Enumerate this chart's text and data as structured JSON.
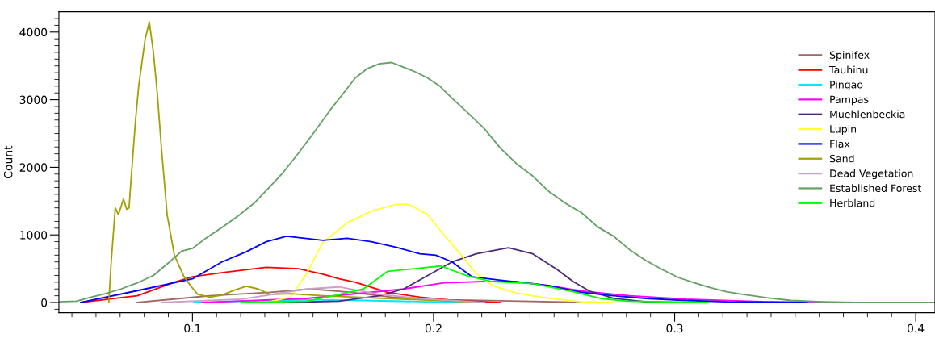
{
  "chart_data": {
    "type": "line",
    "ylabel": "Count",
    "xlim": [
      0.0446,
      0.408
    ],
    "ylim": [
      -150,
      4300
    ],
    "xticks": [
      {
        "value": 0.05,
        "label": null
      },
      {
        "value": 0.06,
        "label": null
      },
      {
        "value": 0.07,
        "label": null
      },
      {
        "value": 0.08,
        "label": null
      },
      {
        "value": 0.09,
        "label": null
      },
      {
        "value": 0.1,
        "label": "0.1"
      },
      {
        "value": 0.11,
        "label": null
      },
      {
        "value": 0.12,
        "label": null
      },
      {
        "value": 0.13,
        "label": null
      },
      {
        "value": 0.14,
        "label": null
      },
      {
        "value": 0.15,
        "label": null
      },
      {
        "value": 0.16,
        "label": null
      },
      {
        "value": 0.17,
        "label": null
      },
      {
        "value": 0.18,
        "label": null
      },
      {
        "value": 0.19,
        "label": null
      },
      {
        "value": 0.2,
        "label": "0.2"
      },
      {
        "value": 0.21,
        "label": null
      },
      {
        "value": 0.22,
        "label": null
      },
      {
        "value": 0.23,
        "label": null
      },
      {
        "value": 0.24,
        "label": null
      },
      {
        "value": 0.25,
        "label": null
      },
      {
        "value": 0.26,
        "label": null
      },
      {
        "value": 0.27,
        "label": null
      },
      {
        "value": 0.28,
        "label": null
      },
      {
        "value": 0.29,
        "label": null
      },
      {
        "value": 0.3,
        "label": "0.3"
      },
      {
        "value": 0.31,
        "label": null
      },
      {
        "value": 0.32,
        "label": null
      },
      {
        "value": 0.33,
        "label": null
      },
      {
        "value": 0.34,
        "label": null
      },
      {
        "value": 0.35,
        "label": null
      },
      {
        "value": 0.36,
        "label": null
      },
      {
        "value": 0.37,
        "label": null
      },
      {
        "value": 0.38,
        "label": null
      },
      {
        "value": 0.39,
        "label": null
      },
      {
        "value": 0.4,
        "label": "0.4"
      }
    ],
    "yticks": [
      {
        "value": -100,
        "label": null
      },
      {
        "value": 0,
        "label": "0"
      },
      {
        "value": 100,
        "label": null
      },
      {
        "value": 200,
        "label": null
      },
      {
        "value": 300,
        "label": null
      },
      {
        "value": 400,
        "label": null
      },
      {
        "value": 500,
        "label": null
      },
      {
        "value": 600,
        "label": null
      },
      {
        "value": 700,
        "label": null
      },
      {
        "value": 800,
        "label": null
      },
      {
        "value": 900,
        "label": null
      },
      {
        "value": 1000,
        "label": "1000"
      },
      {
        "value": 1100,
        "label": null
      },
      {
        "value": 1200,
        "label": null
      },
      {
        "value": 1300,
        "label": null
      },
      {
        "value": 1400,
        "label": null
      },
      {
        "value": 1500,
        "label": null
      },
      {
        "value": 1600,
        "label": null
      },
      {
        "value": 1700,
        "label": null
      },
      {
        "value": 1800,
        "label": null
      },
      {
        "value": 1900,
        "label": null
      },
      {
        "value": 2000,
        "label": "2000"
      },
      {
        "value": 2100,
        "label": null
      },
      {
        "value": 2200,
        "label": null
      },
      {
        "value": 2300,
        "label": null
      },
      {
        "value": 2400,
        "label": null
      },
      {
        "value": 2500,
        "label": null
      },
      {
        "value": 2600,
        "label": null
      },
      {
        "value": 2700,
        "label": null
      },
      {
        "value": 2800,
        "label": null
      },
      {
        "value": 2900,
        "label": null
      },
      {
        "value": 3000,
        "label": "3000"
      },
      {
        "value": 3100,
        "label": null
      },
      {
        "value": 3200,
        "label": null
      },
      {
        "value": 3300,
        "label": null
      },
      {
        "value": 3400,
        "label": null
      },
      {
        "value": 3500,
        "label": null
      },
      {
        "value": 3600,
        "label": null
      },
      {
        "value": 3700,
        "label": null
      },
      {
        "value": 3800,
        "label": null
      },
      {
        "value": 3900,
        "label": null
      },
      {
        "value": 4000,
        "label": "4000"
      },
      {
        "value": 4100,
        "label": null
      },
      {
        "value": 4200,
        "label": null
      }
    ],
    "grid": false,
    "legend": "top right",
    "line_style": "solid",
    "marker": "none",
    "series": [
      {
        "name": "Spinifex",
        "color": "#a06a64",
        "x": [
          0.0771,
          0.1072,
          0.1323,
          0.1491,
          0.1658,
          0.1826,
          0.206,
          0.2362,
          0.263
        ],
        "values": [
          0,
          100,
          150,
          200,
          150,
          80,
          40,
          20,
          0
        ]
      },
      {
        "name": "Tauhinu",
        "color": "#ff0000",
        "x": [
          0.0537,
          0.0771,
          0.0925,
          0.1,
          0.1139,
          0.1306,
          0.144,
          0.1541,
          0.1608,
          0.1675,
          0.1809,
          0.1943,
          0.2077,
          0.2278
        ],
        "values": [
          0,
          100,
          300,
          380,
          450,
          520,
          500,
          420,
          350,
          300,
          150,
          80,
          30,
          0
        ]
      },
      {
        "name": "Pingao",
        "color": "#00e8ff",
        "x": [
          0.1005,
          0.1206,
          0.1474,
          0.1709,
          0.1976,
          0.2144
        ],
        "values": [
          0,
          20,
          40,
          30,
          10,
          0
        ]
      },
      {
        "name": "Pampas",
        "color": "#ff00ff",
        "x": [
          0.1039,
          0.1474,
          0.1709,
          0.1876,
          0.2043,
          0.2211,
          0.2345,
          0.2479,
          0.2613,
          0.2814,
          0.3048,
          0.3383,
          0.3617
        ],
        "values": [
          0,
          60,
          140,
          200,
          290,
          310,
          310,
          250,
          170,
          100,
          50,
          10,
          0
        ]
      },
      {
        "name": "Muehlenbeckia",
        "color": "#4b2a7a",
        "x": [
          0.1373,
          0.1608,
          0.1775,
          0.1876,
          0.1976,
          0.2077,
          0.2177,
          0.2311,
          0.2412,
          0.2512,
          0.2579,
          0.2646,
          0.2747,
          0.2881,
          0.2981
        ],
        "values": [
          0,
          20,
          100,
          200,
          400,
          600,
          720,
          810,
          720,
          490,
          310,
          170,
          60,
          10,
          0
        ]
      },
      {
        "name": "Lupin",
        "color": "#ffff33",
        "x": [
          0.1306,
          0.1407,
          0.1474,
          0.1541,
          0.1642,
          0.1742,
          0.1843,
          0.1899,
          0.1976,
          0.2043,
          0.211,
          0.2177,
          0.2244,
          0.2345,
          0.2479,
          0.2613,
          0.2747
        ],
        "values": [
          0,
          80,
          430,
          890,
          1180,
          1350,
          1450,
          1450,
          1300,
          1000,
          720,
          430,
          250,
          140,
          60,
          10,
          0
        ]
      },
      {
        "name": "Flax",
        "color": "#0000ff",
        "x": [
          0.0537,
          0.0804,
          0.1,
          0.1122,
          0.1223,
          0.1306,
          0.139,
          0.1541,
          0.1642,
          0.1742,
          0.1843,
          0.1943,
          0.201,
          0.2077,
          0.216,
          0.2278,
          0.2379,
          0.2479,
          0.2613,
          0.2747,
          0.2881,
          0.3048,
          0.3215,
          0.355
        ],
        "values": [
          0,
          200,
          350,
          600,
          750,
          900,
          980,
          920,
          950,
          900,
          820,
          720,
          700,
          600,
          380,
          330,
          290,
          250,
          150,
          100,
          60,
          30,
          10,
          0
        ]
      },
      {
        "name": "Sand",
        "color": "#a0a000",
        "x": [
          0.0653,
          0.0663,
          0.068,
          0.0693,
          0.0714,
          0.0727,
          0.0737,
          0.0747,
          0.0764,
          0.0777,
          0.0804,
          0.0821,
          0.0838,
          0.0854,
          0.0871,
          0.0895,
          0.0925,
          0.0965,
          0.0992,
          0.1022,
          0.1072,
          0.1122,
          0.1172,
          0.1223,
          0.1273,
          0.1323,
          0.1407,
          0.1541,
          0.1675,
          0.1809,
          0.1943,
          0.2077,
          0.2211
        ],
        "values": [
          0,
          600,
          1400,
          1300,
          1530,
          1380,
          1400,
          1900,
          2700,
          3200,
          3900,
          4150,
          3700,
          3100,
          2300,
          1300,
          700,
          380,
          250,
          120,
          80,
          110,
          180,
          240,
          200,
          120,
          130,
          100,
          80,
          60,
          40,
          20,
          0
        ]
      },
      {
        "name": "Dead Vegetation",
        "color": "#c8a0c8",
        "x": [
          0.0871,
          0.1206,
          0.1474,
          0.1608,
          0.1775,
          0.1943,
          0.2211
        ],
        "values": [
          0,
          50,
          200,
          230,
          120,
          60,
          0
        ]
      },
      {
        "name": "Established Forest",
        "color": "#64a064",
        "x": [
          0.0446,
          0.0519,
          0.057,
          0.0637,
          0.0704,
          0.0771,
          0.0838,
          0.0905,
          0.0955,
          0.1,
          0.1055,
          0.1122,
          0.1189,
          0.1256,
          0.1323,
          0.1373,
          0.144,
          0.1507,
          0.1574,
          0.1625,
          0.1675,
          0.1725,
          0.1775,
          0.1826,
          0.1876,
          0.1926,
          0.1976,
          0.2026,
          0.2077,
          0.2144,
          0.2211,
          0.2278,
          0.2345,
          0.2412,
          0.2479,
          0.2546,
          0.2613,
          0.268,
          0.2747,
          0.2814,
          0.2881,
          0.2948,
          0.3015,
          0.3082,
          0.3149,
          0.3215,
          0.3282,
          0.3383,
          0.3483,
          0.3617,
          0.3751,
          0.408
        ],
        "values": [
          10,
          20,
          70,
          130,
          200,
          290,
          400,
          600,
          760,
          800,
          950,
          1110,
          1280,
          1470,
          1720,
          1910,
          2210,
          2530,
          2860,
          3090,
          3320,
          3460,
          3530,
          3550,
          3480,
          3410,
          3320,
          3200,
          3020,
          2800,
          2570,
          2280,
          2050,
          1870,
          1640,
          1470,
          1330,
          1120,
          980,
          780,
          620,
          490,
          370,
          290,
          220,
          160,
          120,
          70,
          30,
          10,
          0,
          0
        ]
      },
      {
        "name": "Herbland",
        "color": "#00ff00",
        "x": [
          0.1206,
          0.1474,
          0.1585,
          0.1709,
          0.1809,
          0.192,
          0.203,
          0.2144,
          0.2244,
          0.2412,
          0.2579,
          0.2692,
          0.2804,
          0.3138
        ],
        "values": [
          0,
          20,
          100,
          200,
          460,
          500,
          540,
          390,
          310,
          280,
          160,
          60,
          20,
          0
        ]
      }
    ]
  }
}
